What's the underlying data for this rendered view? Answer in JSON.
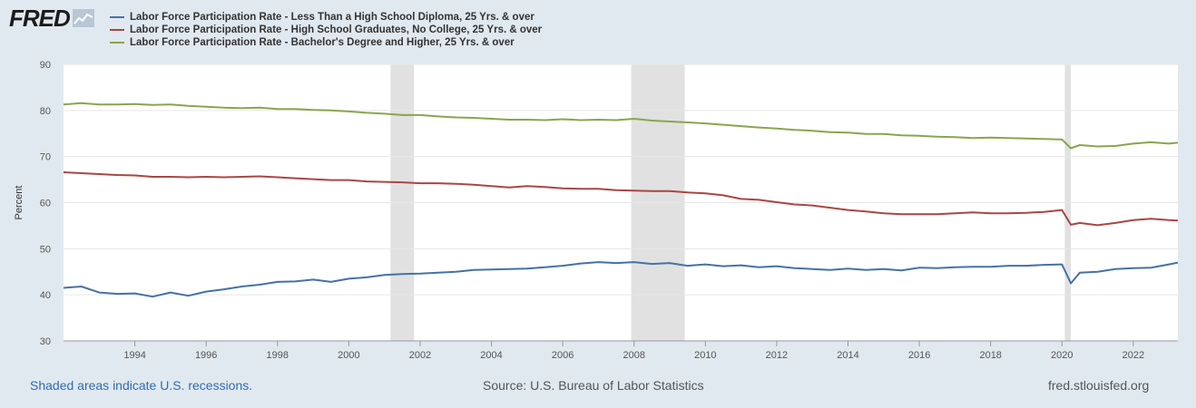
{
  "logo": {
    "text": "FRED"
  },
  "colors": {
    "background": "#e1e9f0",
    "plot": "#ffffff",
    "grid": "#e6e6e6",
    "recession": "#e1e1e1",
    "blue": "#4572a7",
    "red": "#aa4643",
    "green": "#89a54e",
    "axis_text": "#555555"
  },
  "footer": {
    "recession_note": "Shaded areas indicate U.S. recessions.",
    "source": "Source: U.S. Bureau of Labor Statistics",
    "site": "fred.stlouisfed.org"
  },
  "chart_data": {
    "type": "line",
    "title": "",
    "xlabel": "",
    "ylabel": "Percent",
    "xlim": [
      1992.0,
      2023.25
    ],
    "ylim": [
      30,
      90
    ],
    "y_ticks": [
      30,
      40,
      50,
      60,
      70,
      80,
      90
    ],
    "x_ticks": [
      1994,
      1996,
      1998,
      2000,
      2002,
      2004,
      2006,
      2008,
      2010,
      2012,
      2014,
      2016,
      2018,
      2020,
      2022
    ],
    "grid": true,
    "legend_position": "top-left",
    "recessions": [
      [
        2001.17,
        2001.83
      ],
      [
        2007.92,
        2009.42
      ],
      [
        2020.08,
        2020.25
      ]
    ],
    "series": [
      {
        "name": "Labor Force Participation Rate - Less Than a High School Diploma, 25 Yrs. & over",
        "color": "#4572a7",
        "x": [
          1992.0,
          1992.5,
          1993.0,
          1993.5,
          1994.0,
          1994.5,
          1995.0,
          1995.5,
          1996.0,
          1996.5,
          1997.0,
          1997.5,
          1998.0,
          1998.5,
          1999.0,
          1999.5,
          2000.0,
          2000.5,
          2001.0,
          2001.5,
          2002.0,
          2002.5,
          2003.0,
          2003.5,
          2004.0,
          2004.5,
          2005.0,
          2005.5,
          2006.0,
          2006.5,
          2007.0,
          2007.5,
          2008.0,
          2008.5,
          2009.0,
          2009.5,
          2010.0,
          2010.5,
          2011.0,
          2011.5,
          2012.0,
          2012.5,
          2013.0,
          2013.5,
          2014.0,
          2014.5,
          2015.0,
          2015.5,
          2016.0,
          2016.5,
          2017.0,
          2017.5,
          2018.0,
          2018.5,
          2019.0,
          2019.5,
          2020.0,
          2020.25,
          2020.5,
          2021.0,
          2021.5,
          2022.0,
          2022.5,
          2023.0,
          2023.25
        ],
        "values": [
          41.5,
          41.8,
          40.5,
          40.2,
          40.3,
          39.6,
          40.5,
          39.8,
          40.7,
          41.2,
          41.8,
          42.2,
          42.8,
          42.9,
          43.3,
          42.8,
          43.5,
          43.8,
          44.3,
          44.5,
          44.6,
          44.8,
          45.0,
          45.4,
          45.5,
          45.6,
          45.7,
          46.0,
          46.3,
          46.8,
          47.1,
          46.9,
          47.1,
          46.7,
          46.9,
          46.3,
          46.6,
          46.2,
          46.4,
          46.0,
          46.2,
          45.8,
          45.6,
          45.4,
          45.7,
          45.4,
          45.6,
          45.3,
          45.9,
          45.8,
          46.0,
          46.1,
          46.1,
          46.3,
          46.3,
          46.5,
          46.6,
          42.5,
          44.8,
          45.0,
          45.6,
          45.8,
          45.9,
          46.6,
          47.0
        ]
      },
      {
        "name": "Labor Force Participation Rate - High School Graduates, No College, 25 Yrs. & over",
        "color": "#aa4643",
        "x": [
          1992.0,
          1992.5,
          1993.0,
          1993.5,
          1994.0,
          1994.5,
          1995.0,
          1995.5,
          1996.0,
          1996.5,
          1997.0,
          1997.5,
          1998.0,
          1998.5,
          1999.0,
          1999.5,
          2000.0,
          2000.5,
          2001.0,
          2001.5,
          2002.0,
          2002.5,
          2003.0,
          2003.5,
          2004.0,
          2004.5,
          2005.0,
          2005.5,
          2006.0,
          2006.5,
          2007.0,
          2007.5,
          2008.0,
          2008.5,
          2009.0,
          2009.5,
          2010.0,
          2010.5,
          2011.0,
          2011.5,
          2012.0,
          2012.5,
          2013.0,
          2013.5,
          2014.0,
          2014.5,
          2015.0,
          2015.5,
          2016.0,
          2016.5,
          2017.0,
          2017.5,
          2018.0,
          2018.5,
          2019.0,
          2019.5,
          2020.0,
          2020.25,
          2020.5,
          2021.0,
          2021.5,
          2022.0,
          2022.5,
          2023.0,
          2023.25
        ],
        "values": [
          66.6,
          66.4,
          66.2,
          66.0,
          65.9,
          65.6,
          65.6,
          65.5,
          65.6,
          65.5,
          65.6,
          65.7,
          65.5,
          65.3,
          65.1,
          64.9,
          64.9,
          64.6,
          64.5,
          64.4,
          64.2,
          64.2,
          64.1,
          63.9,
          63.6,
          63.3,
          63.6,
          63.4,
          63.1,
          63.0,
          63.0,
          62.7,
          62.6,
          62.5,
          62.5,
          62.2,
          62.0,
          61.6,
          60.8,
          60.6,
          60.1,
          59.6,
          59.4,
          58.9,
          58.4,
          58.1,
          57.7,
          57.5,
          57.5,
          57.5,
          57.7,
          57.9,
          57.7,
          57.7,
          57.8,
          58.0,
          58.4,
          55.2,
          55.6,
          55.1,
          55.6,
          56.2,
          56.5,
          56.2,
          56.1
        ]
      },
      {
        "name": "Labor Force Participation Rate - Bachelor's Degree and Higher, 25 Yrs. & over",
        "color": "#89a54e",
        "x": [
          1992.0,
          1992.5,
          1993.0,
          1993.5,
          1994.0,
          1994.5,
          1995.0,
          1995.5,
          1996.0,
          1996.5,
          1997.0,
          1997.5,
          1998.0,
          1998.5,
          1999.0,
          1999.5,
          2000.0,
          2000.5,
          2001.0,
          2001.5,
          2002.0,
          2002.5,
          2003.0,
          2003.5,
          2004.0,
          2004.5,
          2005.0,
          2005.5,
          2006.0,
          2006.5,
          2007.0,
          2007.5,
          2008.0,
          2008.5,
          2009.0,
          2009.5,
          2010.0,
          2010.5,
          2011.0,
          2011.5,
          2012.0,
          2012.5,
          2013.0,
          2013.5,
          2014.0,
          2014.5,
          2015.0,
          2015.5,
          2016.0,
          2016.5,
          2017.0,
          2017.5,
          2018.0,
          2018.5,
          2019.0,
          2019.5,
          2020.0,
          2020.25,
          2020.5,
          2021.0,
          2021.5,
          2022.0,
          2022.5,
          2023.0,
          2023.25
        ],
        "values": [
          81.3,
          81.6,
          81.3,
          81.3,
          81.4,
          81.2,
          81.3,
          81.0,
          80.8,
          80.6,
          80.5,
          80.6,
          80.3,
          80.3,
          80.1,
          80.0,
          79.8,
          79.5,
          79.3,
          79.0,
          79.0,
          78.7,
          78.5,
          78.4,
          78.2,
          78.0,
          78.0,
          77.9,
          78.1,
          77.9,
          78.0,
          77.9,
          78.2,
          77.8,
          77.6,
          77.4,
          77.2,
          76.9,
          76.6,
          76.3,
          76.1,
          75.8,
          75.6,
          75.3,
          75.2,
          74.9,
          74.9,
          74.6,
          74.5,
          74.3,
          74.2,
          74.0,
          74.1,
          74.0,
          73.9,
          73.8,
          73.7,
          71.8,
          72.5,
          72.2,
          72.3,
          72.8,
          73.1,
          72.8,
          73.0
        ]
      }
    ]
  }
}
